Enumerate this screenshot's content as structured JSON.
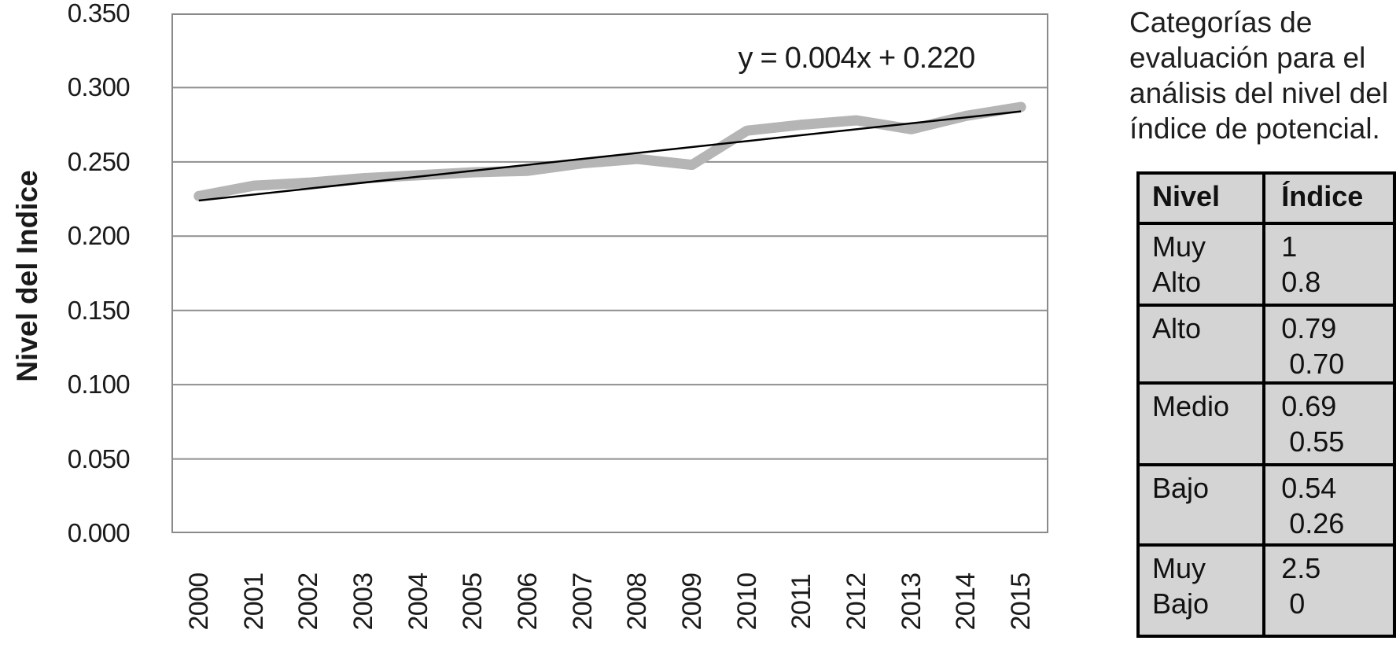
{
  "chart_data": {
    "type": "line",
    "title": "",
    "ylabel": "Nivel del Indice",
    "xlabel": "",
    "categories": [
      "2000",
      "2001",
      "2002",
      "2003",
      "2004",
      "2005",
      "2006",
      "2007",
      "2008",
      "2009",
      "2010",
      "2011",
      "2012",
      "2013",
      "2014",
      "2015"
    ],
    "series": [
      {
        "name": "Nivel del índice de potencial",
        "color": "#b5b5b5",
        "values": [
          0.227,
          0.234,
          0.236,
          0.239,
          0.241,
          0.243,
          0.244,
          0.249,
          0.252,
          0.248,
          0.271,
          0.275,
          0.278,
          0.272,
          0.281,
          0.287
        ]
      }
    ],
    "trendline": {
      "label": "y = 0.004x + 0.220",
      "slope": 0.004,
      "intercept": 0.22,
      "color": "#000000"
    },
    "ylim": [
      0,
      0.35
    ],
    "ytick_step": 0.05,
    "ytick_decimals": 3,
    "ytick_labels": [
      "0.000",
      "0.050",
      "0.100",
      "0.150",
      "0.200",
      "0.250",
      "0.300",
      "0.350"
    ],
    "grid": true,
    "legend_position": "none"
  },
  "side_panel": {
    "caption": "Categorías de\nevaluación para el\nanálisis del nivel del\níndice de potencial.",
    "table": {
      "headers": [
        "Nivel",
        "Índice"
      ],
      "rows": [
        {
          "nivel": "Muy\nAlto",
          "indice": "1\n0.8"
        },
        {
          "nivel": "Alto",
          "indice": "0.79\n 0.70"
        },
        {
          "nivel": "Medio",
          "indice": "0.69\n 0.55"
        },
        {
          "nivel": "Bajo",
          "indice": "0.54\n 0.26"
        },
        {
          "nivel": "Muy\nBajo",
          "indice": "2.5\n 0"
        }
      ]
    }
  },
  "colors": {
    "series": "#b5b5b5",
    "trendline": "#000000",
    "gridline": "#8f8f8f",
    "plot_border": "#8a8a8a",
    "table_background": "#d4d4d4",
    "table_border": "#000000",
    "text": "#1a1a1a"
  }
}
